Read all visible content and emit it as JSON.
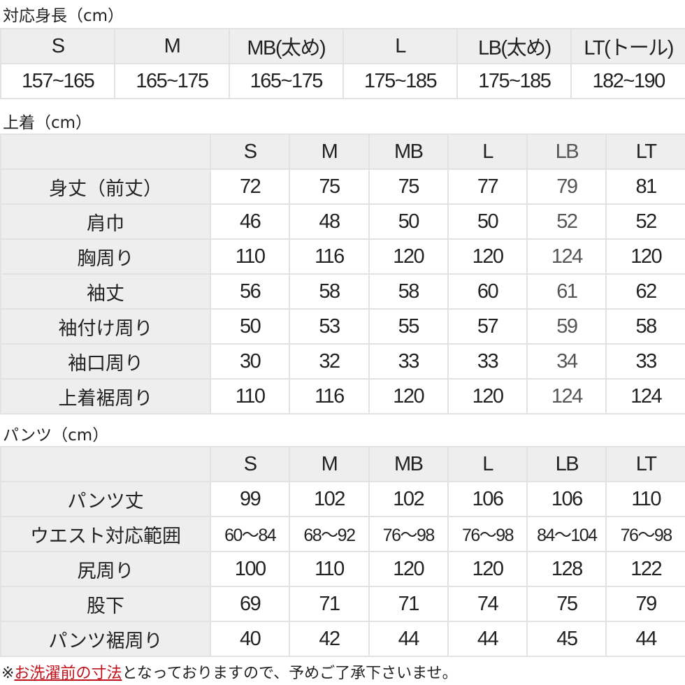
{
  "height_section": {
    "title": "対応身長（cm）",
    "sizes": [
      "S",
      "M",
      "MB(太め)",
      "L",
      "LB(太め)",
      "LT(トール)"
    ],
    "heights": [
      "157~165",
      "165~175",
      "165~175",
      "175~185",
      "175~185",
      "182~190"
    ]
  },
  "jacket_section": {
    "title": "上着（cm）",
    "sizes": [
      "S",
      "M",
      "MB",
      "L",
      "LB",
      "LT"
    ],
    "rows": [
      {
        "label": "身丈（前丈）",
        "values": [
          "72",
          "75",
          "75",
          "77",
          "79",
          "81"
        ]
      },
      {
        "label": "肩巾",
        "values": [
          "46",
          "48",
          "50",
          "50",
          "52",
          "52"
        ]
      },
      {
        "label": "胸周り",
        "values": [
          "110",
          "116",
          "120",
          "120",
          "124",
          "120"
        ]
      },
      {
        "label": "袖丈",
        "values": [
          "56",
          "58",
          "58",
          "60",
          "61",
          "62"
        ]
      },
      {
        "label": "袖付け周り",
        "values": [
          "50",
          "53",
          "55",
          "57",
          "59",
          "58"
        ]
      },
      {
        "label": "袖口周り",
        "values": [
          "30",
          "32",
          "33",
          "33",
          "34",
          "33"
        ]
      },
      {
        "label": "上着裾周り",
        "values": [
          "110",
          "116",
          "120",
          "120",
          "124",
          "124"
        ]
      }
    ]
  },
  "pants_section": {
    "title": "パンツ（cm）",
    "sizes": [
      "S",
      "M",
      "MB",
      "L",
      "LB",
      "LT"
    ],
    "rows": [
      {
        "label": "パンツ丈",
        "values": [
          "99",
          "102",
          "102",
          "106",
          "106",
          "110"
        ]
      },
      {
        "label": "ウエスト対応範囲",
        "values": [
          "60～84",
          "68～92",
          "76～98",
          "76～98",
          "84～104",
          "76～98"
        ]
      },
      {
        "label": "尻周り",
        "values": [
          "100",
          "110",
          "120",
          "120",
          "128",
          "122"
        ]
      },
      {
        "label": "股下",
        "values": [
          "69",
          "71",
          "71",
          "74",
          "75",
          "79"
        ]
      },
      {
        "label": "パンツ裾周り",
        "values": [
          "40",
          "42",
          "44",
          "44",
          "45",
          "44"
        ]
      }
    ]
  },
  "footnote": {
    "prefix": "※",
    "highlight": "お洗濯前の寸法",
    "rest": "となっておりますので、予めご了承下さいませ。",
    "highlight_color": "#c0101a"
  }
}
